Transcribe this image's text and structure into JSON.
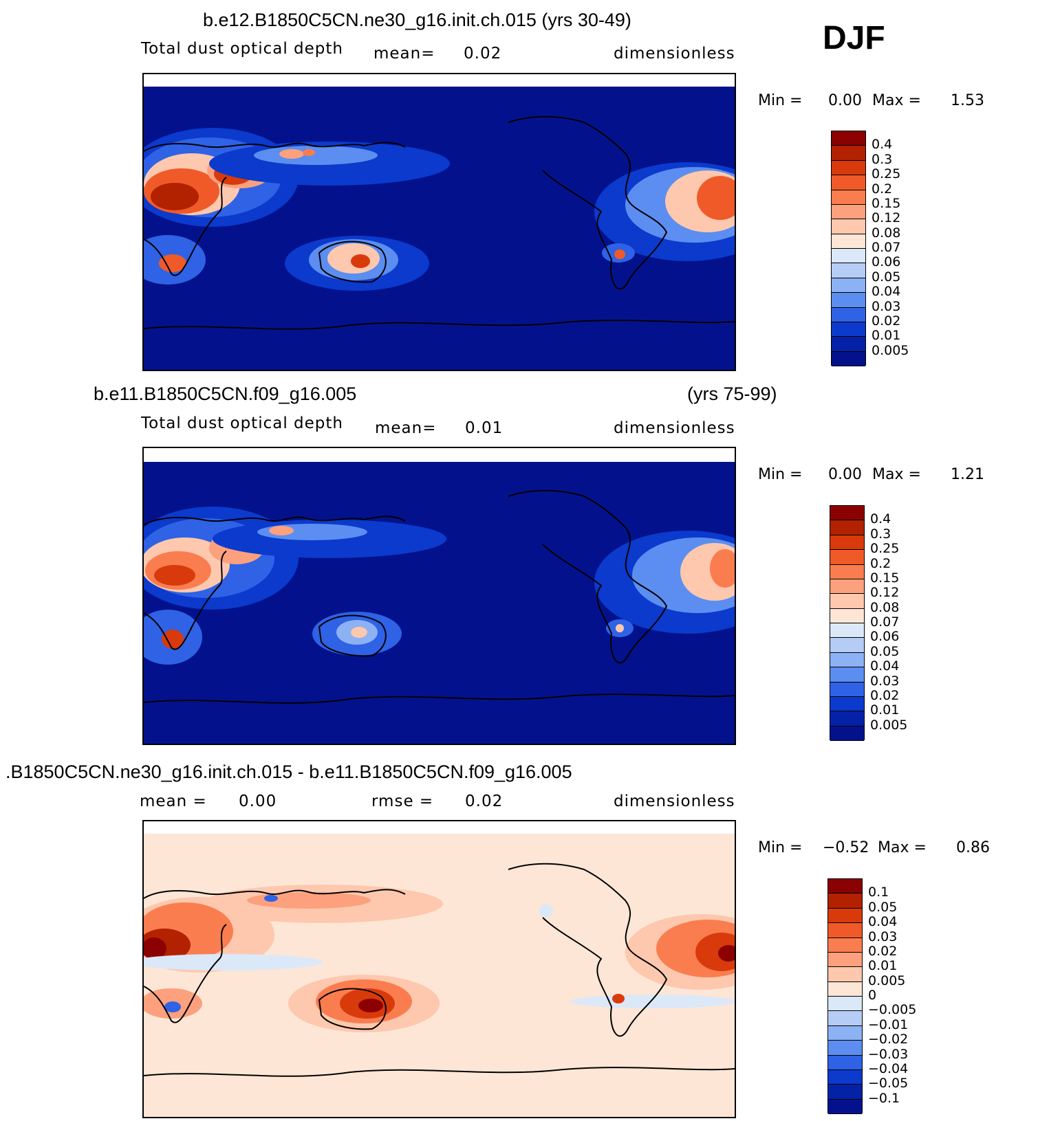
{
  "season": "DJF",
  "panels": [
    {
      "title": "b.e12.B1850C5CN.ne30_g16.init.ch.015 (yrs 30-49)",
      "title_right": "",
      "variable": "Total dust optical depth",
      "stat1": "mean=",
      "stat1_value": "0.02",
      "stat2": "",
      "stat2_value": "",
      "units": "dimensionless",
      "min_label": "Min =",
      "min_value": "0.00",
      "max_label": "Max =",
      "max_value": "1.53",
      "levels": [
        "0.4",
        "0.3",
        "0.25",
        "0.2",
        "0.15",
        "0.12",
        "0.08",
        "0.07",
        "0.06",
        "0.05",
        "0.04",
        "0.03",
        "0.02",
        "0.01",
        "0.005"
      ],
      "colors": [
        "#8b0000",
        "#b22200",
        "#d93a0c",
        "#ef5a28",
        "#fa7d4f",
        "#fca07e",
        "#fdc8ae",
        "#fde6d6",
        "#dbe8f8",
        "#b5cdf5",
        "#8cb2f4",
        "#5b8ef0",
        "#2f62e5",
        "#0b3acd",
        "#0422a8",
        "#03128c"
      ]
    },
    {
      "title": "b.e11.B1850C5CN.f09_g16.005",
      "title_right": "(yrs 75-99)",
      "variable": "Total dust optical depth",
      "stat1": "mean=",
      "stat1_value": "0.01",
      "stat2": "",
      "stat2_value": "",
      "units": "dimensionless",
      "min_label": "Min =",
      "min_value": "0.00",
      "max_label": "Max =",
      "max_value": "1.21",
      "levels": [
        "0.4",
        "0.3",
        "0.25",
        "0.2",
        "0.15",
        "0.12",
        "0.08",
        "0.07",
        "0.06",
        "0.05",
        "0.04",
        "0.03",
        "0.02",
        "0.01",
        "0.005"
      ],
      "colors": [
        "#8b0000",
        "#b22200",
        "#d93a0c",
        "#ef5a28",
        "#fa7d4f",
        "#fca07e",
        "#fdc8ae",
        "#fde6d6",
        "#dbe8f8",
        "#b5cdf5",
        "#8cb2f4",
        "#5b8ef0",
        "#2f62e5",
        "#0b3acd",
        "#0422a8",
        "#03128c"
      ]
    },
    {
      "title": ".B1850C5CN.ne30_g16.init.ch.015 - b.e11.B1850C5CN.f09_g16.005",
      "title_right": "",
      "variable": "",
      "stat1": "mean =",
      "stat1_value": "0.00",
      "stat2": "rmse =",
      "stat2_value": "0.02",
      "units": "dimensionless",
      "min_label": "Min =",
      "min_value": "−0.52",
      "max_label": "Max =",
      "max_value": "0.86",
      "levels": [
        "0.1",
        "0.05",
        "0.04",
        "0.03",
        "0.02",
        "0.01",
        "0.005",
        "0",
        "−0.005",
        "−0.01",
        "−0.02",
        "−0.03",
        "−0.04",
        "−0.05",
        "−0.1"
      ],
      "colors": [
        "#8b0000",
        "#b22200",
        "#d93a0c",
        "#ef5a28",
        "#fa7d4f",
        "#fca07e",
        "#fdc8ae",
        "#fde6d6",
        "#dbe8f8",
        "#b5cdf5",
        "#8cb2f4",
        "#5b8ef0",
        "#2f62e5",
        "#0b3acd",
        "#0422a8",
        "#03128c"
      ]
    }
  ]
}
